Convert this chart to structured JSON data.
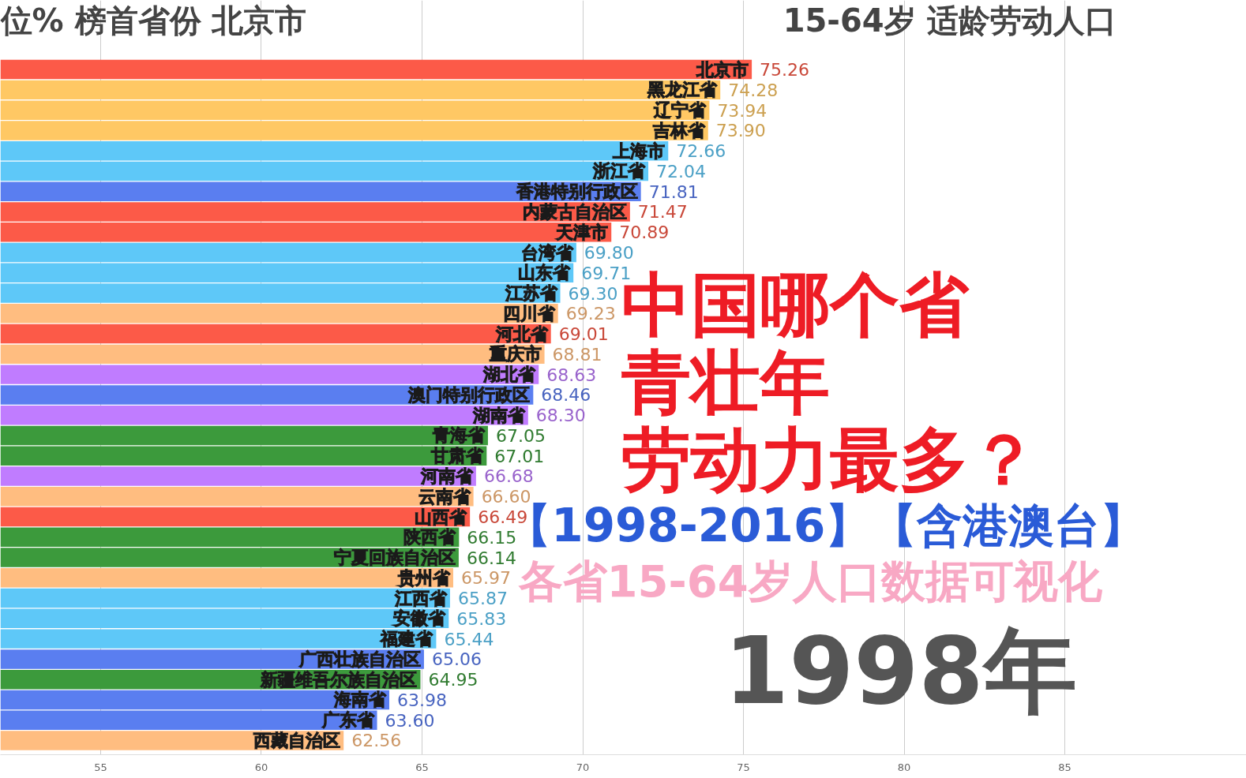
{
  "chart_data": {
    "type": "bar",
    "orientation": "horizontal",
    "title": "位% 榜首省份  北京市",
    "subtitle": "15-64岁 适龄劳动人口",
    "categories": [
      "北京市",
      "黑龙江省",
      "辽宁省",
      "吉林省",
      "上海市",
      "浙江省",
      "香港特别行政区",
      "内蒙古自治区",
      "天津市",
      "台湾省",
      "山东省",
      "江苏省",
      "四川省",
      "河北省",
      "重庆市",
      "湖北省",
      "澳门特别行政区",
      "湖南省",
      "青海省",
      "甘肃省",
      "河南省",
      "云南省",
      "山西省",
      "陕西省",
      "宁夏回族自治区",
      "贵州省",
      "江西省",
      "安徽省",
      "福建省",
      "广西壮族自治区",
      "新疆维吾尔族自治区",
      "海南省",
      "广东省",
      "西藏自治区"
    ],
    "values": [
      75.26,
      74.28,
      73.94,
      73.9,
      72.66,
      72.04,
      71.81,
      71.47,
      70.89,
      69.8,
      69.71,
      69.3,
      69.23,
      69.01,
      68.81,
      68.63,
      68.46,
      68.3,
      67.05,
      67.01,
      66.68,
      66.6,
      66.49,
      66.15,
      66.14,
      65.97,
      65.87,
      65.83,
      65.44,
      65.06,
      64.95,
      63.98,
      63.6,
      62.56
    ],
    "value_labels": [
      "75.26",
      "74.28",
      "73.94",
      "73.90",
      "72.66",
      "72.04",
      "71.81",
      "71.47",
      "70.89",
      "69.80",
      "69.71",
      "69.30",
      "69.23",
      "69.01",
      "68.81",
      "68.63",
      "68.46",
      "68.30",
      "67.05",
      "67.01",
      "66.68",
      "66.60",
      "66.49",
      "66.15",
      "66.14",
      "65.97",
      "65.87",
      "65.83",
      "65.44",
      "65.06",
      "64.95",
      "63.98",
      "63.60",
      "62.56"
    ],
    "colors": [
      "#fc5a48",
      "#ffc864",
      "#ffc864",
      "#ffc864",
      "#5ec8f8",
      "#5ec8f8",
      "#5a7ef0",
      "#fc5a48",
      "#fc5a48",
      "#5ec8f8",
      "#5ec8f8",
      "#5ec8f8",
      "#ffbd80",
      "#fc5a48",
      "#ffbd80",
      "#c07cff",
      "#5a7ef0",
      "#c07cff",
      "#3c9a3c",
      "#3c9a3c",
      "#c07cff",
      "#ffbd80",
      "#fc5a48",
      "#3c9a3c",
      "#3c9a3c",
      "#ffbd80",
      "#5ec8f8",
      "#5ec8f8",
      "#5ec8f8",
      "#5a7ef0",
      "#3c9a3c",
      "#5a7ef0",
      "#5a7ef0",
      "#ffbd80"
    ],
    "xlim": [
      51.88,
      90.65
    ],
    "xticks": [
      55,
      60,
      65,
      70,
      75,
      80,
      85
    ],
    "grid": "x",
    "tick_labels": "x",
    "annotations": [
      "中国哪个省",
      "青壮年",
      "劳动力最多？",
      "【1998-2016】【含港澳台】",
      "各省15-64岁人口数据可视化",
      "1998年"
    ]
  }
}
